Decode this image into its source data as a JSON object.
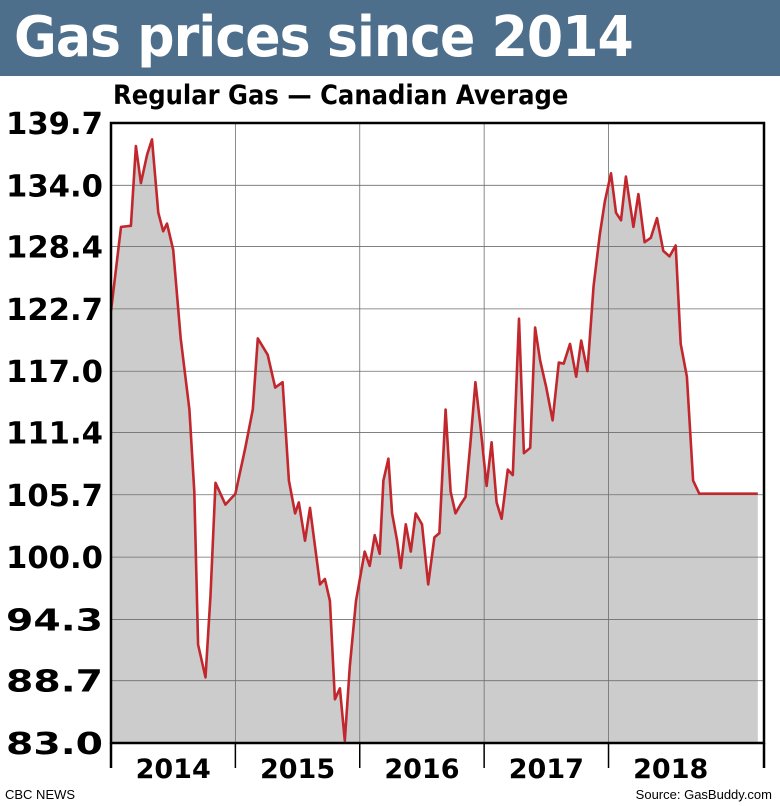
{
  "header": {
    "title": "Gas prices since 2014"
  },
  "chart_data": {
    "type": "area",
    "title": "Gas prices since 2014",
    "subtitle": "Regular Gas — Canadian Average",
    "xlabel": "",
    "ylabel": "",
    "yticks": [
      "139.7",
      "134.0",
      "128.4",
      "122.7",
      "117.0",
      "111.4",
      "105.7",
      "100.0",
      "94.3",
      "88.7",
      "83.0"
    ],
    "ylim": [
      83.0,
      139.7
    ],
    "xlim": [
      2014.0,
      2019.25
    ],
    "year_labels": [
      "2014",
      "2015",
      "2016",
      "2017",
      "2018"
    ],
    "grid": true,
    "line_color": "#c1272d",
    "fill_color": "#cccccc",
    "series": [
      {
        "x": [
          2014.0,
          2014.08,
          2014.16,
          2014.2,
          2014.24,
          2014.29,
          2014.33,
          2014.38,
          2014.42,
          2014.45,
          2014.5,
          2014.56,
          2014.63,
          2014.67,
          2014.7,
          2014.76,
          2014.8,
          2014.84,
          2014.92,
          2015.0,
          2015.08,
          2015.14,
          2015.18,
          2015.26,
          2015.32,
          2015.38,
          2015.43,
          2015.48,
          2015.51,
          2015.56,
          2015.6,
          2015.64,
          2015.68,
          2015.72,
          2015.76,
          2015.8,
          2015.84,
          2015.88,
          2015.92,
          2015.97,
          2016.04,
          2016.08,
          2016.12,
          2016.16,
          2016.19,
          2016.23,
          2016.26,
          2016.3,
          2016.33,
          2016.37,
          2016.41,
          2016.45,
          2016.5,
          2016.55,
          2016.6,
          2016.64,
          2016.69,
          2016.73,
          2016.77,
          2016.81,
          2016.85,
          2016.89,
          2016.93,
          2016.97,
          2017.02,
          2017.06,
          2017.1,
          2017.14,
          2017.19,
          2017.23,
          2017.28,
          2017.32,
          2017.37,
          2017.41,
          2017.45,
          2017.5,
          2017.55,
          2017.6,
          2017.64,
          2017.69,
          2017.74,
          2017.78,
          2017.83,
          2017.88,
          2017.93,
          2017.97,
          2018.02,
          2018.06,
          2018.1,
          2018.14,
          2018.2,
          2018.24,
          2018.29,
          2018.34,
          2018.39,
          2018.44,
          2018.49,
          2018.54,
          2018.58,
          2018.63,
          2018.68,
          2018.73,
          2018.78,
          2018.82,
          2018.86,
          2018.9,
          2018.94,
          2018.98,
          2019.03,
          2019.08,
          2019.14,
          2019.2
        ],
        "y": [
          122.5,
          130.2,
          130.3,
          137.6,
          134.2,
          136.8,
          138.2,
          131.5,
          129.8,
          130.5,
          128.1,
          120.0,
          113.5,
          106.0,
          92.0,
          89.0,
          96.5,
          106.8,
          104.8,
          105.8,
          110.0,
          113.5,
          120.0,
          118.5,
          115.5,
          116.0,
          107.0,
          104.0,
          105.0,
          101.5,
          104.5,
          101.0,
          97.5,
          98.0,
          96.0,
          87.0,
          88.0,
          83.2,
          90.0,
          96.0,
          100.5,
          99.2,
          102.0,
          100.3,
          107.0,
          109.0,
          104.0,
          101.5,
          99.0,
          103.0,
          100.5,
          104.0,
          103.0,
          97.5,
          101.8,
          102.2,
          113.5,
          106.0,
          104.0,
          104.8,
          105.5,
          110.5,
          116.0,
          112.0,
          106.5,
          110.5,
          105.0,
          103.5,
          108.0,
          107.5,
          121.8,
          109.5,
          110.0,
          121.0,
          118.0,
          115.5,
          112.5,
          117.8,
          117.7,
          119.5,
          116.5,
          119.8,
          117.0,
          124.8,
          129.5,
          132.5,
          135.1,
          131.5,
          130.8,
          134.8,
          130.2,
          133.2,
          128.8,
          129.2,
          131.0,
          128.0,
          127.5,
          128.5,
          119.5,
          116.5,
          107.0,
          105.8,
          105.8,
          105.8,
          105.8,
          105.8,
          105.8,
          105.8,
          105.8,
          105.8,
          105.8,
          105.8
        ]
      }
    ]
  },
  "footer": {
    "credit": "CBC NEWS",
    "source": "Source: GasBuddy.com"
  }
}
